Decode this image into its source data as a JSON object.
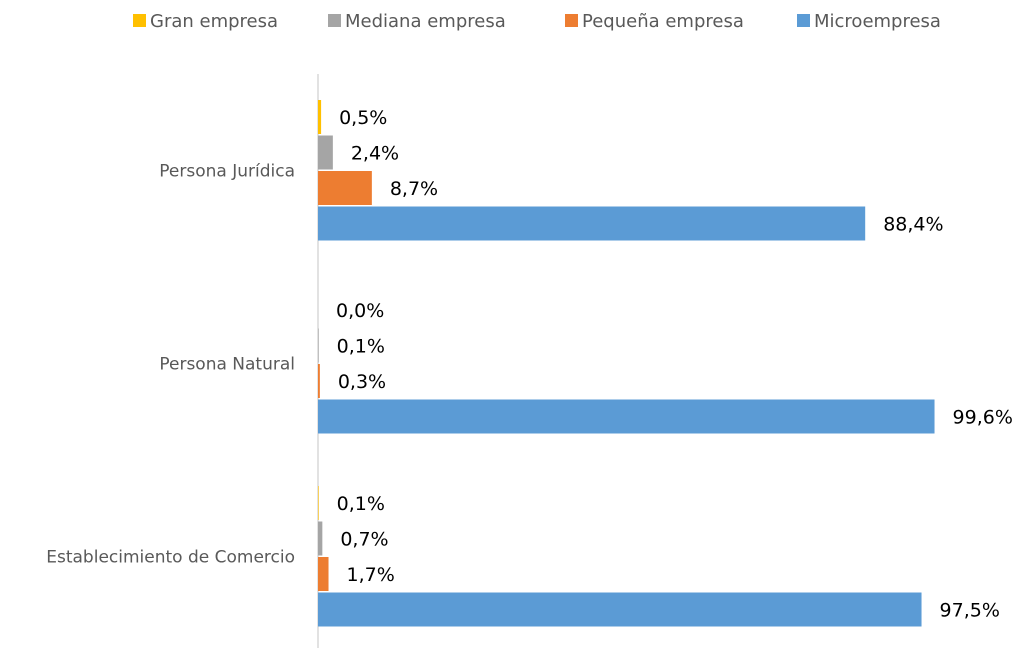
{
  "chart_data": {
    "type": "bar",
    "orientation": "horizontal",
    "categories": [
      "Persona Jurídica",
      "Persona Natural",
      "Establecimiento de Comercio"
    ],
    "series": [
      {
        "name": "Gran empresa",
        "color": "#FFC000",
        "values": [
          0.5,
          0.0,
          0.1
        ],
        "labels": [
          "0,5%",
          "0,0%",
          "0,1%"
        ]
      },
      {
        "name": "Mediana empresa",
        "color": "#A5A5A5",
        "values": [
          2.4,
          0.1,
          0.7
        ],
        "labels": [
          "2,4%",
          "0,1%",
          "0,7%"
        ]
      },
      {
        "name": "Pequeña empresa",
        "color": "#ED7D31",
        "values": [
          8.7,
          0.3,
          1.7
        ],
        "labels": [
          "8,7%",
          "0,3%",
          "1,7%"
        ]
      },
      {
        "name": "Microempresa",
        "color": "#5B9BD5",
        "values": [
          88.4,
          99.6,
          97.5
        ],
        "labels": [
          "88,4%",
          "99,6%",
          "97,5%"
        ]
      }
    ],
    "value_unit": "%",
    "xlim": [
      0,
      100
    ],
    "title": "",
    "xlabel": "",
    "ylabel": "",
    "grid": false,
    "legend": "top"
  }
}
